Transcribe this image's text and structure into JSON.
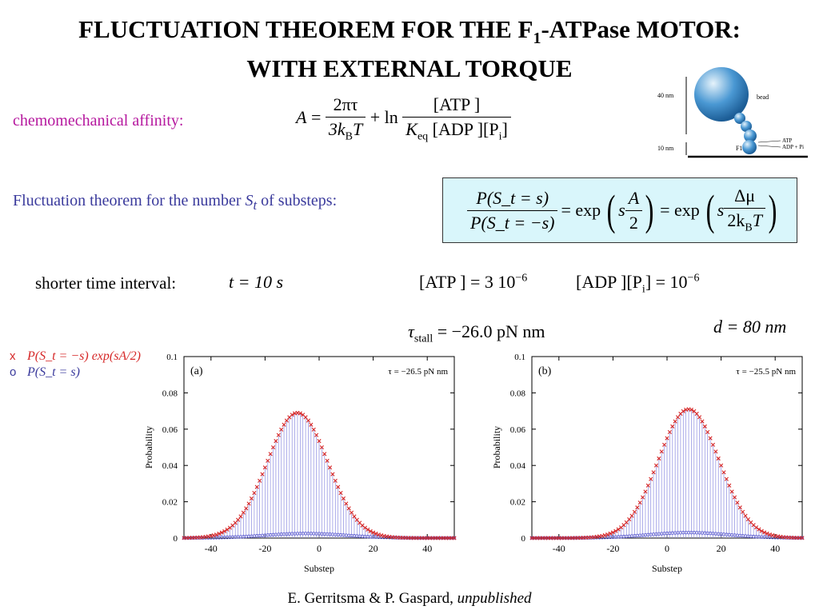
{
  "title": {
    "line1_prefix": "FLUCTUATION THEOREM FOR THE F",
    "line1_sub": "1",
    "line1_suffix": "-ATPase MOTOR:",
    "line2": "WITH EXTERNAL TORQUE"
  },
  "affinity_label": "chemomechanical affinity:",
  "affinity_formula": {
    "lhs": "A",
    "eq": "=",
    "frac1_num": "2πτ",
    "frac1_den_a": "3k",
    "frac1_den_sub": "B",
    "frac1_den_b": "T",
    "plus_ln": "+ ln",
    "frac2_num": "[ATP ]",
    "frac2_den_a": "K",
    "frac2_den_sub": "eq",
    "frac2_den_b": " [ADP ][P",
    "frac2_den_sub2": "i",
    "frac2_den_c": "]"
  },
  "ft_label": {
    "prefix": "Fluctuation theorem for the number ",
    "var": "S",
    "var_sub": "t",
    "suffix": " of substeps:"
  },
  "ft_formula": {
    "num": "P(S_t = s)",
    "den": "P(S_t = −s)",
    "eq1": "= exp",
    "arg1_s": "s",
    "arg1_num": "A",
    "arg1_den": "2",
    "eq2": "= exp",
    "arg2_s": "s",
    "arg2_num": "Δμ",
    "arg2_den_a": "2k",
    "arg2_den_sub": "B",
    "arg2_den_b": "T"
  },
  "short_interval": {
    "label": "shorter time interval:",
    "t_expr": "t = 10 s",
    "atp_expr": "[ATP ] = 3 10",
    "atp_exp": "−6",
    "adp_expr": "[ADP ][P",
    "adp_sub": "i",
    "adp_expr2": "] = 10",
    "adp_exp": "−6"
  },
  "tau_stall": {
    "symbol": "τ",
    "sub": "stall",
    "value": "= −26.0 pN nm"
  },
  "d_value": "d = 80 nm",
  "legend": {
    "x_marker": "x",
    "x_text": "P(S_t = −s) exp(sA/2)",
    "o_marker": "o",
    "o_text": "P(S_t = s)"
  },
  "diagram": {
    "label_40nm": "40 nm",
    "label_10nm": "10 nm",
    "label_bead": "bead",
    "label_f1": "F1",
    "label_atp": "ATP",
    "label_adp": "ADP + Pi"
  },
  "footer": {
    "authors": "E. Gerritsma & P. Gaspard, ",
    "status": "unpublished"
  },
  "chart_data": [
    {
      "type": "scatter",
      "panel_label": "(a)",
      "annotation": "τ = −26.5 pN nm",
      "xlabel": "Substep",
      "ylabel": "Probability",
      "xlim": [
        -50,
        50
      ],
      "ylim": [
        0,
        0.1
      ],
      "xticks": [
        -40,
        -20,
        0,
        20,
        40
      ],
      "yticks": [
        0,
        0.02,
        0.04,
        0.06,
        0.08,
        0.1
      ],
      "ytick_labels": [
        "0",
        "0.02",
        "0.04",
        "0.06",
        "0.08",
        "0.1"
      ],
      "series": [
        {
          "name": "P(S_t = −s) exp(sA/2)",
          "marker": "x",
          "color": "#d62828",
          "gaussian": {
            "peak": 0.069,
            "mean": -8,
            "sigma": 11.2
          }
        },
        {
          "name": "P(S_t = s)",
          "marker": "o",
          "color": "#5a5acf",
          "gaussian": {
            "peak": 0.0025,
            "mean": -5,
            "sigma": 15
          }
        }
      ]
    },
    {
      "type": "scatter",
      "panel_label": "(b)",
      "annotation": "τ = −25.5 pN nm",
      "xlabel": "Substep",
      "ylabel": "Probability",
      "xlim": [
        -50,
        50
      ],
      "ylim": [
        0,
        0.1
      ],
      "xticks": [
        -40,
        -20,
        0,
        20,
        40
      ],
      "yticks": [
        0,
        0.02,
        0.04,
        0.06,
        0.08,
        0.1
      ],
      "ytick_labels": [
        "0",
        "0.02",
        "0.04",
        "0.06",
        "0.08",
        "0.1"
      ],
      "series": [
        {
          "name": "P(S_t = −s) exp(sA/2)",
          "marker": "x",
          "color": "#d62828",
          "gaussian": {
            "peak": 0.071,
            "mean": 8,
            "sigma": 11.2
          }
        },
        {
          "name": "P(S_t = s)",
          "marker": "o",
          "color": "#5a5acf",
          "gaussian": {
            "peak": 0.003,
            "mean": 8,
            "sigma": 15
          }
        }
      ]
    }
  ]
}
